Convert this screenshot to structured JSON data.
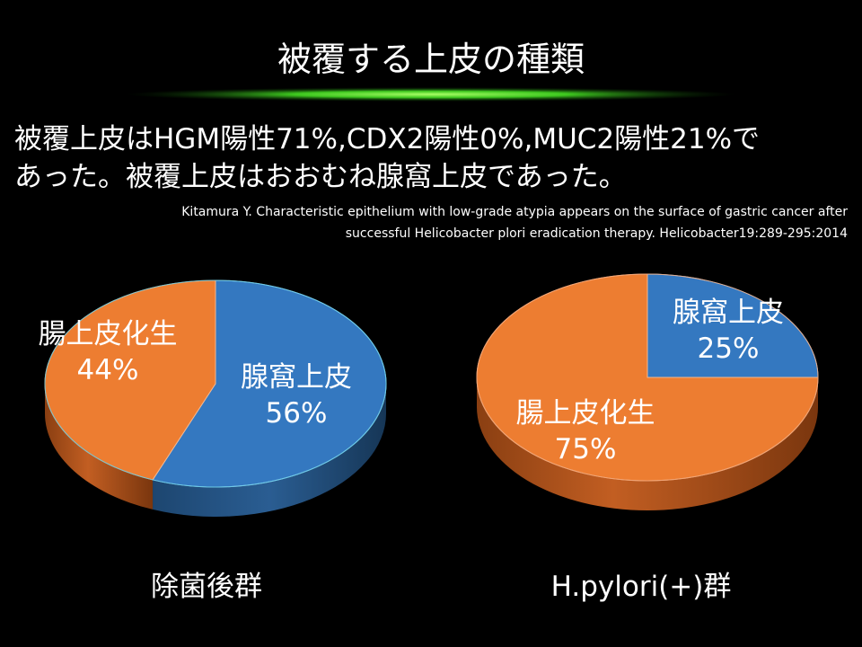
{
  "slide": {
    "title": "被覆する上皮の種類",
    "body_lines": [
      "被覆上皮はHGM陽性71%,CDX2陽性0%,MUC2陽性21%で",
      "あった。被覆上皮はおおむね腺窩上皮であった。"
    ],
    "citation_lines": [
      "Kitamura Y. Characteristic epithelium with low-grade atypia appears on the surface of gastric cancer after",
      "successful  Helicobacter  plori eradication therapy. Helicobacter19:289-295:2014"
    ]
  },
  "colors": {
    "foveolar": "#3478C0",
    "intestinal": "#ED7D31",
    "background": "#000000",
    "glow": "#66FF33"
  },
  "chart_data": [
    {
      "type": "pie",
      "title": "除菌後群",
      "slices": [
        {
          "label": "腺窩上皮",
          "value": 56,
          "value_label": "56%"
        },
        {
          "label": "腸上皮化生",
          "value": 44,
          "value_label": "44%"
        }
      ]
    },
    {
      "type": "pie",
      "title": "H.pylori(+)群",
      "slices": [
        {
          "label": "腺窩上皮",
          "value": 25,
          "value_label": "25%"
        },
        {
          "label": "腸上皮化生",
          "value": 75,
          "value_label": "75%"
        }
      ]
    }
  ]
}
